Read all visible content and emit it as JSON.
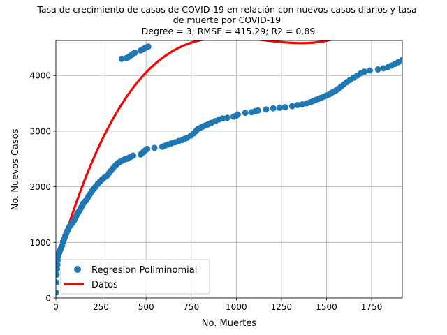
{
  "chart_data": {
    "type": "scatter",
    "title_lines": [
      "Tasa de crecimiento de casos de COVID-19 en relación con nuevos casos diarios y tasa",
      "de muerte por COVID-19",
      " Degree = 3; RMSE = 415.29; R2 = 0.89"
    ],
    "xlabel": "No. Muertes",
    "ylabel": "No. Nuevos Casos",
    "xlim": [
      0,
      1920
    ],
    "ylim": [
      0,
      4630
    ],
    "xticks": [
      0,
      250,
      500,
      750,
      1000,
      1250,
      1500,
      1750
    ],
    "yticks": [
      0,
      1000,
      2000,
      3000,
      4000
    ],
    "grid": true,
    "legend_position": "lower-left",
    "legend": [
      {
        "label": "Regresion Poliminomial",
        "kind": "marker",
        "color": "#1f77b4"
      },
      {
        "label": "Datos",
        "kind": "line",
        "color": "#ff0000"
      }
    ],
    "series": [
      {
        "kind": "scatter",
        "color": "#1f77b4",
        "points": [
          [
            0,
            100
          ],
          [
            2,
            280
          ],
          [
            4,
            420
          ],
          [
            6,
            520
          ],
          [
            8,
            600
          ],
          [
            10,
            680
          ],
          [
            14,
            760
          ],
          [
            18,
            810
          ],
          [
            22,
            850
          ],
          [
            28,
            890
          ],
          [
            34,
            940
          ],
          [
            40,
            1010
          ],
          [
            46,
            1060
          ],
          [
            52,
            1110
          ],
          [
            58,
            1160
          ],
          [
            64,
            1210
          ],
          [
            70,
            1250
          ],
          [
            76,
            1290
          ],
          [
            84,
            1320
          ],
          [
            92,
            1350
          ],
          [
            100,
            1390
          ],
          [
            106,
            1430
          ],
          [
            112,
            1470
          ],
          [
            118,
            1510
          ],
          [
            124,
            1540
          ],
          [
            130,
            1570
          ],
          [
            136,
            1600
          ],
          [
            142,
            1640
          ],
          [
            148,
            1680
          ],
          [
            154,
            1710
          ],
          [
            160,
            1730
          ],
          [
            168,
            1760
          ],
          [
            176,
            1800
          ],
          [
            184,
            1840
          ],
          [
            192,
            1880
          ],
          [
            200,
            1920
          ],
          [
            210,
            1960
          ],
          [
            220,
            2000
          ],
          [
            232,
            2050
          ],
          [
            244,
            2090
          ],
          [
            256,
            2130
          ],
          [
            270,
            2170
          ],
          [
            284,
            2200
          ],
          [
            296,
            2250
          ],
          [
            306,
            2290
          ],
          [
            316,
            2330
          ],
          [
            326,
            2370
          ],
          [
            336,
            2400
          ],
          [
            346,
            2430
          ],
          [
            356,
            2450
          ],
          [
            368,
            2470
          ],
          [
            380,
            2490
          ],
          [
            392,
            2500
          ],
          [
            404,
            2520
          ],
          [
            416,
            2540
          ],
          [
            428,
            2560
          ],
          [
            470,
            2580
          ],
          [
            478,
            2600
          ],
          [
            484,
            2620
          ],
          [
            490,
            2640
          ],
          [
            498,
            2660
          ],
          [
            506,
            2680
          ],
          [
            546,
            2700
          ],
          [
            590,
            2720
          ],
          [
            606,
            2740
          ],
          [
            622,
            2760
          ],
          [
            640,
            2780
          ],
          [
            660,
            2800
          ],
          [
            680,
            2820
          ],
          [
            700,
            2840
          ],
          [
            712,
            2860
          ],
          [
            726,
            2880
          ],
          [
            748,
            2920
          ],
          [
            764,
            2960
          ],
          [
            776,
            3000
          ],
          [
            788,
            3040
          ],
          [
            800,
            3060
          ],
          [
            812,
            3080
          ],
          [
            826,
            3100
          ],
          [
            842,
            3120
          ],
          [
            862,
            3150
          ],
          [
            884,
            3180
          ],
          [
            904,
            3210
          ],
          [
            924,
            3230
          ],
          [
            950,
            3240
          ],
          [
            985,
            3260
          ],
          [
            1000,
            3280
          ],
          [
            1008,
            3300
          ],
          [
            1050,
            3330
          ],
          [
            1085,
            3340
          ],
          [
            1105,
            3360
          ],
          [
            1120,
            3370
          ],
          [
            1165,
            3390
          ],
          [
            1205,
            3410
          ],
          [
            1240,
            3420
          ],
          [
            1270,
            3430
          ],
          [
            1310,
            3450
          ],
          [
            1340,
            3470
          ],
          [
            1365,
            3480
          ],
          [
            1390,
            3500
          ],
          [
            1410,
            3520
          ],
          [
            1425,
            3540
          ],
          [
            1440,
            3560
          ],
          [
            1455,
            3580
          ],
          [
            1470,
            3600
          ],
          [
            1485,
            3620
          ],
          [
            1500,
            3640
          ],
          [
            1515,
            3660
          ],
          [
            1528,
            3690
          ],
          [
            1540,
            3710
          ],
          [
            1552,
            3730
          ],
          [
            1565,
            3760
          ],
          [
            1580,
            3800
          ],
          [
            1595,
            3840
          ],
          [
            1612,
            3880
          ],
          [
            1630,
            3920
          ],
          [
            1650,
            3960
          ],
          [
            1670,
            4000
          ],
          [
            1690,
            4040
          ],
          [
            1710,
            4070
          ],
          [
            1740,
            4090
          ],
          [
            1785,
            4110
          ],
          [
            1815,
            4130
          ],
          [
            1840,
            4150
          ],
          [
            1860,
            4180
          ],
          [
            1880,
            4210
          ],
          [
            1898,
            4240
          ],
          [
            1920,
            4280
          ],
          [
            365,
            4300
          ],
          [
            388,
            4310
          ],
          [
            402,
            4330
          ],
          [
            414,
            4360
          ],
          [
            426,
            4390
          ],
          [
            438,
            4410
          ],
          [
            470,
            4450
          ],
          [
            482,
            4470
          ],
          [
            492,
            4490
          ],
          [
            504,
            4510
          ],
          [
            512,
            4520
          ]
        ]
      },
      {
        "kind": "polynomial_line",
        "color": "#ff0000",
        "coefficients": [
          560,
          11.32,
          -0.01012,
          2.92e-06
        ],
        "x_range": [
          0,
          1920
        ]
      }
    ]
  }
}
